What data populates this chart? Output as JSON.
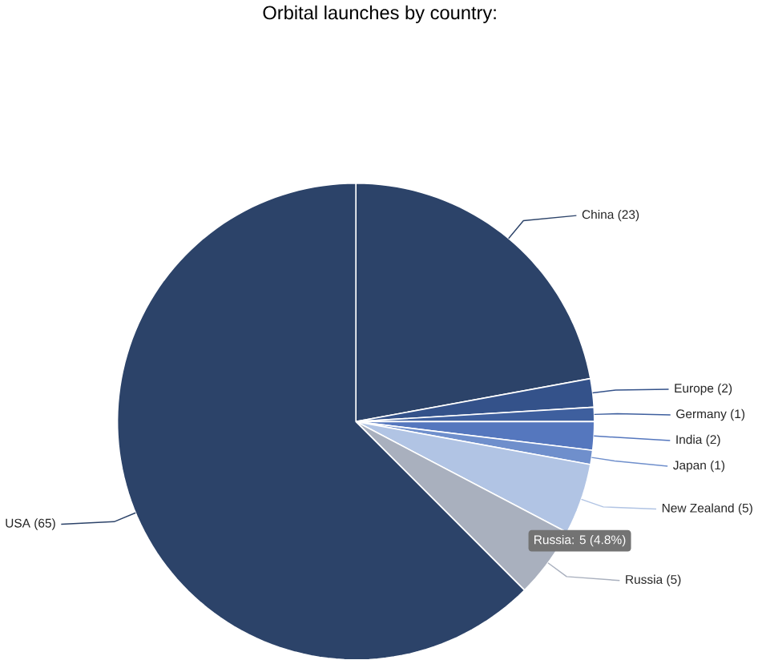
{
  "chart_data": {
    "type": "pie",
    "title": "Orbital launches by country:",
    "categories": [
      "China",
      "Europe",
      "Germany",
      "India",
      "Japan",
      "New Zealand",
      "Russia",
      "USA"
    ],
    "values": [
      23,
      2,
      1,
      2,
      1,
      5,
      5,
      65
    ],
    "value_labels": [
      "(23)",
      "(2)",
      "(1)",
      "(2)",
      "(1)",
      "(5)",
      "(5)",
      "(65)"
    ],
    "colors": [
      "#2c4369",
      "#34528a",
      "#3e5f9e",
      "#5577be",
      "#6f8fcc",
      "#b1c4e4",
      "#a9b0be",
      "#2c4369"
    ],
    "annotations": [
      "Russia: 5 (4.8%)"
    ]
  }
}
